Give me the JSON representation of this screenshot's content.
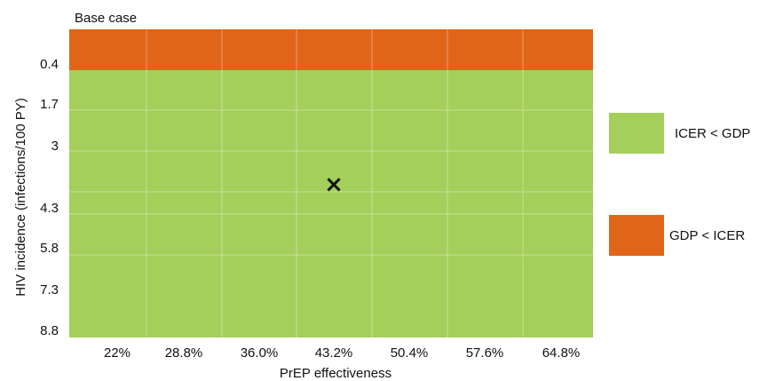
{
  "chart_data": {
    "type": "heatmap",
    "annotation": "Base case",
    "xlabel": "PrEP effectiveness",
    "ylabel": "HIV incidence (infections/100 PY)",
    "x_ticks": [
      "22%",
      "28.8%",
      "36.0%",
      "43.2%",
      "50.4%",
      "57.6%",
      "64.8%"
    ],
    "y_ticks": [
      "0.4",
      "1.7",
      "3",
      "4.3",
      "5.8",
      "7.3",
      "8.8"
    ],
    "regions": [
      {
        "label": "GDP < ICER",
        "color": "#e06518",
        "y_from": "top",
        "y_to": 0.4
      },
      {
        "label": "ICER < GDP",
        "color": "#a4cf5b",
        "y_from": 0.4,
        "y_to": 8.8
      }
    ],
    "base_case_marker": {
      "symbol": "×",
      "x": "43.2%",
      "y": 3.8
    },
    "grid": true
  },
  "legend": {
    "items": [
      {
        "label": "ICER < GDP",
        "color": "#a4cf5b"
      },
      {
        "label": "GDP < ICER",
        "color": "#e06518"
      }
    ]
  }
}
